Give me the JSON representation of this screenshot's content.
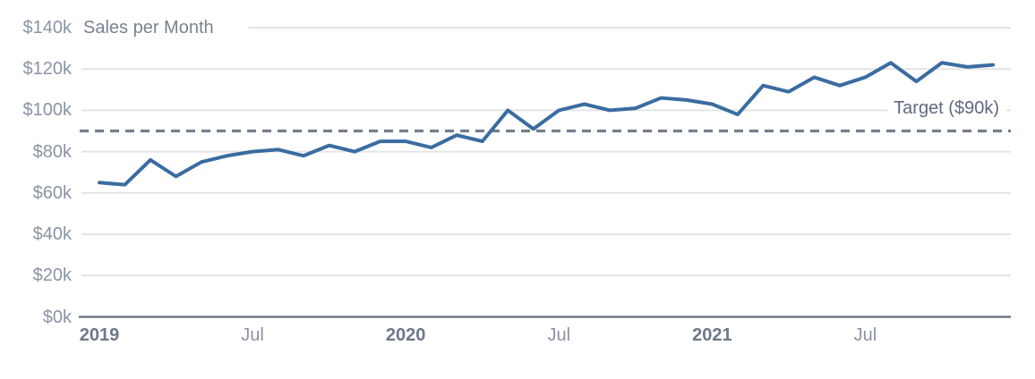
{
  "chart_data": {
    "type": "line",
    "title": "Sales per Month",
    "values_unit": "$k",
    "x": [
      "2019-01",
      "2019-02",
      "2019-03",
      "2019-04",
      "2019-05",
      "2019-06",
      "2019-07",
      "2019-08",
      "2019-09",
      "2019-10",
      "2019-11",
      "2019-12",
      "2020-01",
      "2020-02",
      "2020-03",
      "2020-04",
      "2020-05",
      "2020-06",
      "2020-07",
      "2020-08",
      "2020-09",
      "2020-10",
      "2020-11",
      "2020-12",
      "2021-01",
      "2021-02",
      "2021-03",
      "2021-04",
      "2021-05",
      "2021-06",
      "2021-07",
      "2021-08",
      "2021-09",
      "2021-10",
      "2021-11",
      "2021-12"
    ],
    "series": [
      {
        "name": "Sales",
        "values": [
          65,
          64,
          76,
          68,
          75,
          78,
          80,
          81,
          78,
          83,
          80,
          85,
          85,
          82,
          88,
          85,
          100,
          91,
          100,
          103,
          100,
          101,
          106,
          105,
          103,
          98,
          112,
          109,
          116,
          112,
          116,
          123,
          114,
          123,
          121,
          122
        ]
      }
    ],
    "x_ticks": [
      {
        "month_index": 0,
        "label": "2019",
        "bold": true
      },
      {
        "month_index": 6,
        "label": "Jul",
        "bold": false
      },
      {
        "month_index": 12,
        "label": "2020",
        "bold": true
      },
      {
        "month_index": 18,
        "label": "Jul",
        "bold": false
      },
      {
        "month_index": 24,
        "label": "2021",
        "bold": true
      },
      {
        "month_index": 30,
        "label": "Jul",
        "bold": false
      }
    ],
    "y_ticks": [
      {
        "value": 0,
        "label": "$0k"
      },
      {
        "value": 20,
        "label": "$20k"
      },
      {
        "value": 40,
        "label": "$40k"
      },
      {
        "value": 60,
        "label": "$60k"
      },
      {
        "value": 80,
        "label": "$80k"
      },
      {
        "value": 100,
        "label": "$100k"
      },
      {
        "value": 120,
        "label": "$120k"
      },
      {
        "value": 140,
        "label": "$140k"
      }
    ],
    "ylim": [
      0,
      140
    ],
    "grid": "horizontal",
    "legend": "none",
    "target": {
      "value": 90,
      "label": "Target ($90k)"
    }
  },
  "colors": {
    "series_line": "#3a6ca1",
    "target_line": "#747e8e",
    "gridline": "#e3e4e8",
    "axis_line": "#6f7989",
    "tick_label": "#8a93a4",
    "year_label": "#6e7888",
    "title_text": "#79828f",
    "target_text": "#5e6a7c",
    "background": "#ffffff"
  }
}
